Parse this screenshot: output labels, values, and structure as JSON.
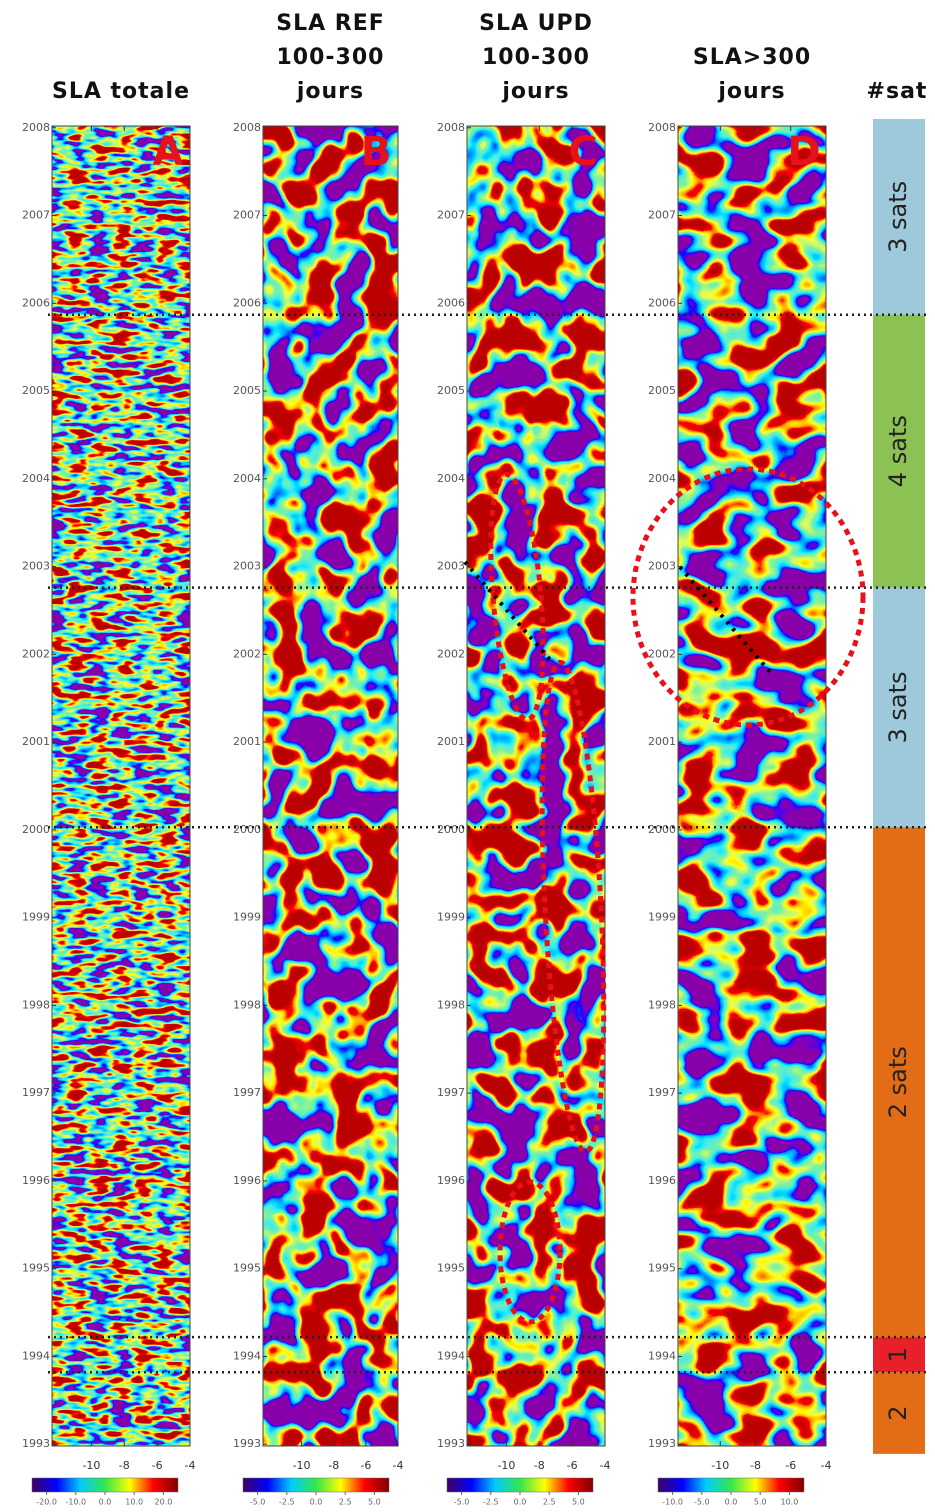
{
  "chart_data": [
    {
      "type": "heatmap",
      "title": [
        "SLA totale"
      ],
      "letter": "A",
      "ylim": [
        2008.02,
        1992.98
      ],
      "yticks": [
        2008,
        2007,
        2006,
        2005,
        2004,
        2003,
        2002,
        2001,
        2000,
        1999,
        1998,
        1997,
        1996,
        1995,
        1994,
        1993
      ],
      "xlim": [
        -12.4,
        -4
      ],
      "xticks": [
        -10,
        -8,
        -6,
        -4
      ],
      "colorbar": {
        "lim": [
          -25,
          25
        ],
        "ticks": [
          {
            "value": -20,
            "label": "-20.0"
          },
          {
            "value": -10,
            "label": "-10.0"
          },
          {
            "value": 0,
            "label": "0.0"
          },
          {
            "value": 10,
            "label": "10.0"
          },
          {
            "value": 20,
            "label": "20.0"
          }
        ]
      }
    },
    {
      "type": "heatmap",
      "title": [
        "SLA REF",
        "100-300",
        "jours"
      ],
      "letter": "B",
      "ylim": [
        2008.02,
        1992.98
      ],
      "yticks": [
        2008,
        2007,
        2006,
        2005,
        2004,
        2003,
        2002,
        2001,
        2000,
        1999,
        1998,
        1997,
        1996,
        1995,
        1994,
        1993
      ],
      "xlim": [
        -12.4,
        -4
      ],
      "xticks": [
        -10,
        -8,
        -6,
        -4
      ],
      "colorbar": {
        "lim": [
          -6.25,
          6.25
        ],
        "ticks": [
          {
            "value": -5,
            "label": "-5.0"
          },
          {
            "value": -2.5,
            "label": "-2.5"
          },
          {
            "value": 0,
            "label": "0.0"
          },
          {
            "value": 2.5,
            "label": "2.5"
          },
          {
            "value": 5,
            "label": "5.0"
          }
        ]
      }
    },
    {
      "type": "heatmap",
      "title": [
        "SLA UPD",
        "100-300",
        "jours"
      ],
      "letter": "C",
      "ylim": [
        2008.02,
        1992.98
      ],
      "yticks": [
        2008,
        2007,
        2006,
        2005,
        2004,
        2003,
        2002,
        2001,
        2000,
        1999,
        1998,
        1997,
        1996,
        1995,
        1994,
        1993
      ],
      "xlim": [
        -12.4,
        -4
      ],
      "xticks": [
        -10,
        -8,
        -6,
        -4
      ],
      "colorbar": {
        "lim": [
          -6.25,
          6.25
        ],
        "ticks": [
          {
            "value": -5,
            "label": "-5.0"
          },
          {
            "value": -2.5,
            "label": "-2.5"
          },
          {
            "value": 0,
            "label": "0.0"
          },
          {
            "value": 2.5,
            "label": "2.5"
          },
          {
            "value": 5,
            "label": "5.0"
          }
        ]
      }
    },
    {
      "type": "heatmap",
      "title": [
        "SLA>300",
        "jours"
      ],
      "letter": "D",
      "ylim": [
        2008.02,
        1992.98
      ],
      "yticks": [
        2008,
        2007,
        2006,
        2005,
        2004,
        2003,
        2002,
        2001,
        2000,
        1999,
        1998,
        1997,
        1996,
        1995,
        1994,
        1993
      ],
      "xlim": [
        -12.4,
        -4
      ],
      "xticks": [
        -10,
        -8,
        -6,
        -4
      ],
      "colorbar": {
        "lim": [
          -12.5,
          12.5
        ],
        "ticks": [
          {
            "value": -10,
            "label": "-10.0"
          },
          {
            "value": -5,
            "label": "-5.0"
          },
          {
            "value": 0,
            "label": "0.0"
          },
          {
            "value": 5,
            "label": "5.0"
          },
          {
            "value": 10,
            "label": "10.0"
          }
        ]
      }
    }
  ],
  "satellites": {
    "title": "#sat",
    "segments": [
      {
        "label": "3 sats",
        "start": 2008.1,
        "end": 2005.87,
        "color": "#9dc9da"
      },
      {
        "label": "4 sats",
        "start": 2005.87,
        "end": 2002.76,
        "color": "#8cc153"
      },
      {
        "label": "3 sats",
        "start": 2002.76,
        "end": 2000.03,
        "color": "#9dc9da"
      },
      {
        "label": "2 sats",
        "start": 2000.03,
        "end": 1994.22,
        "color": "#e36c17"
      },
      {
        "label": "1",
        "start": 1994.22,
        "end": 1993.82,
        "color": "#e8202a"
      },
      {
        "label": "2",
        "start": 1993.82,
        "end": 1992.89,
        "color": "#e36c17"
      }
    ]
  }
}
